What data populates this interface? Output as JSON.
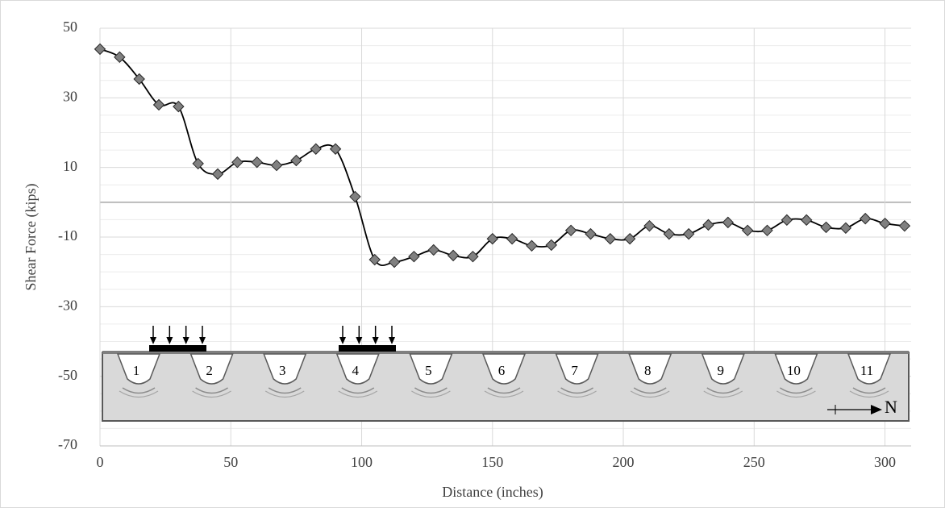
{
  "chart_data": {
    "type": "line",
    "x_label": "Distance (inches)",
    "y_label": "Shear Force (kips)",
    "x": [
      0,
      7.5,
      15,
      22.5,
      30,
      37.5,
      45,
      52.5,
      60,
      67.5,
      75,
      82.5,
      90,
      97.5,
      105,
      112.5,
      120,
      127.5,
      135,
      142.5,
      150,
      157.5,
      165,
      172.5,
      180,
      187.5,
      195,
      202.5,
      210,
      217.5,
      225,
      232.5,
      240,
      247.5,
      255,
      262.5,
      270,
      277.5,
      285,
      292.5,
      300,
      307.5
    ],
    "series": [
      {
        "color": "#808080",
        "values": [
          44,
          41.7,
          35.4,
          28,
          27.5,
          11.1,
          8.1,
          11.5,
          11.5,
          10.6,
          12,
          15.3,
          15.3,
          1.6,
          -16.5,
          -17.2,
          -15.6,
          -13.7,
          -15.3,
          -15.6,
          -10.5,
          -10.5,
          -12.5,
          -12.3,
          -8.1,
          -9.1,
          -10.5,
          -10.5,
          -6.8,
          -9.1,
          -9.1,
          -6.5,
          -5.8,
          -8.1,
          -8.1,
          -5.1,
          -5.1,
          -7.2,
          -7.4,
          -4.7,
          -6.1,
          -6.8
        ]
      }
    ],
    "xlim": [
      0,
      310
    ],
    "xticks": [
      0,
      50,
      100,
      150,
      200,
      250,
      300
    ],
    "ylim": [
      -70,
      50
    ],
    "yticks": [
      -70,
      -50,
      -30,
      -10,
      10,
      30,
      50
    ],
    "minor_yticks": [
      -65,
      -60,
      -55,
      -45,
      -40,
      -35,
      -25,
      -20,
      -15,
      -5,
      0,
      5,
      15,
      20,
      25,
      35,
      40,
      45
    ],
    "grid": true,
    "diagram": {
      "slots": [
        "1",
        "2",
        "3",
        "4",
        "5",
        "6",
        "7",
        "8",
        "9",
        "10",
        "11"
      ],
      "north": "N"
    }
  }
}
